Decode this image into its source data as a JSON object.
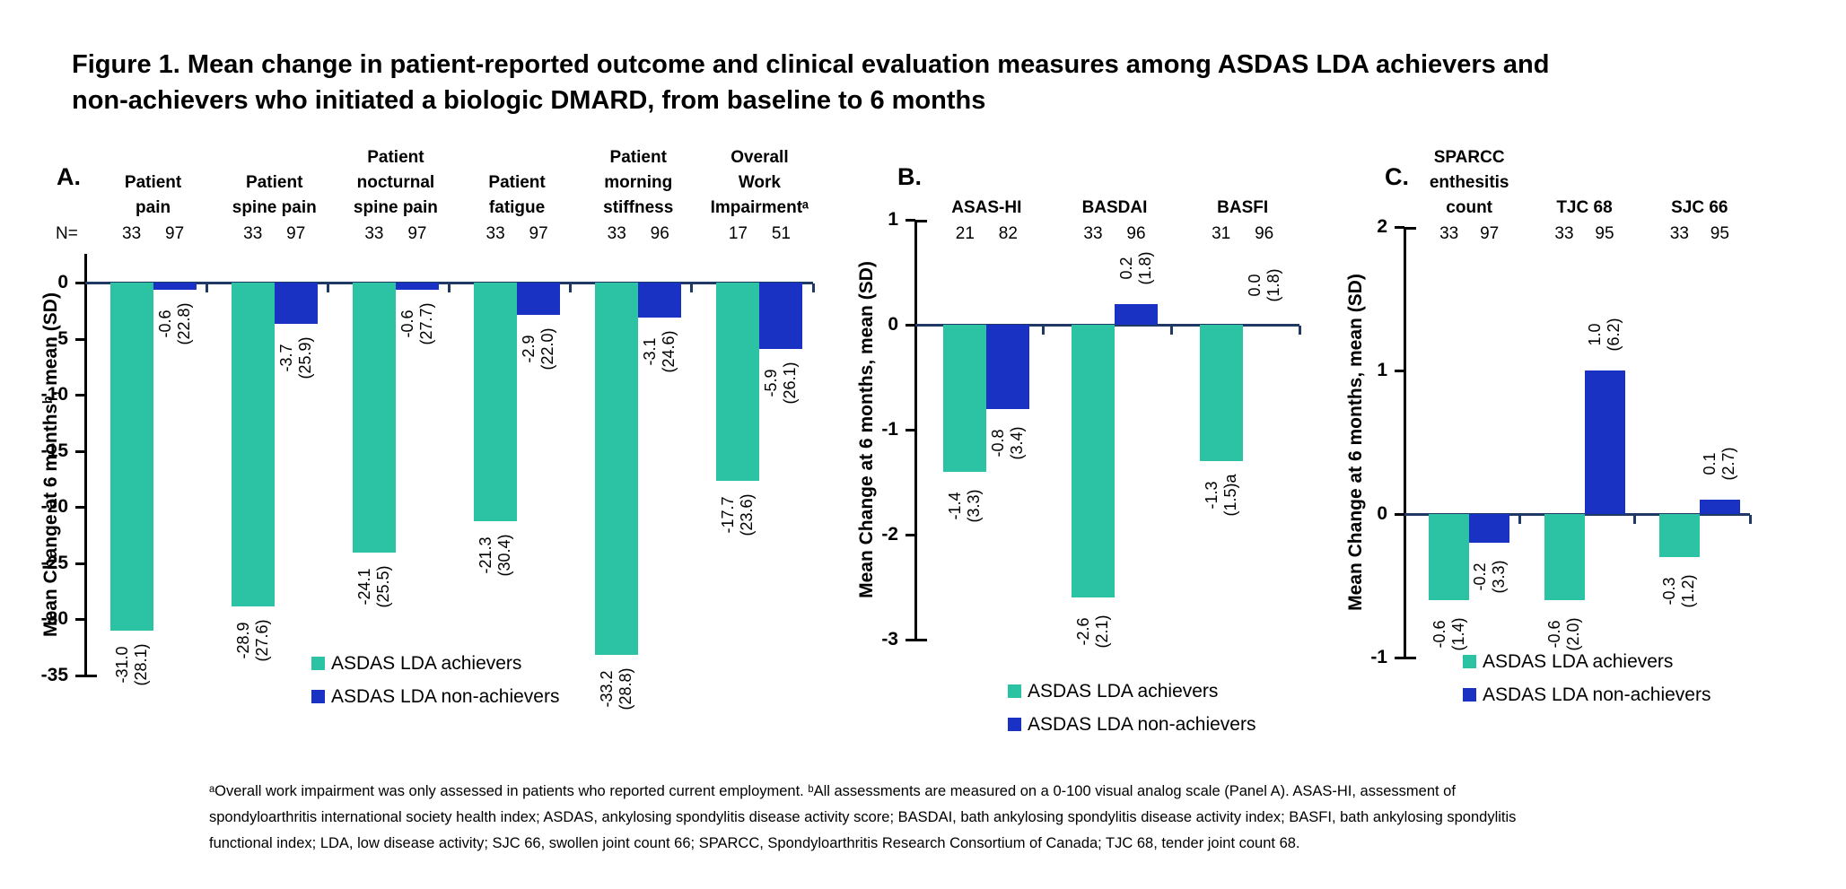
{
  "title": "Figure 1. Mean change in patient-reported outcome and clinical evaluation measures among ASDAS LDA achievers and\nnon-achievers who initiated a biologic DMARD, from baseline to 6 months",
  "n_equals_label": "N=",
  "legend": {
    "achievers_label": "ASDAS LDA achievers",
    "non_achievers_label": "ASDAS LDA non-achievers"
  },
  "colors": {
    "achievers": "#2CC2A4",
    "non_achievers": "#1A32C4",
    "baseline": "#1F3864",
    "axis": "#000000"
  },
  "footnote": "ᵃOverall work impairment was only assessed in patients who reported current employment. ᵇAll assessments are measured on a 0-100 visual analog scale (Panel A). ASAS-HI, assessment of\nspondyloarthritis international society health index; ASDAS, ankylosing spondylitis disease activity score; BASDAI, bath ankylosing spondylitis disease activity index; BASFI, bath ankylosing spondylitis\nfunctional index; LDA, low disease activity; SJC 66, swollen joint count 66; SPARCC, Spondyloarthritis Research Consortium of Canada; TJC 68, tender joint count 68.",
  "chart_data": [
    {
      "id": "A",
      "type": "bar",
      "panel_label": "A.",
      "ylabel": "Mean Change at 6 monthsᵇ, mean (SD)",
      "ylim": [
        -35,
        0
      ],
      "yticks": [
        0,
        -5,
        -10,
        -15,
        -20,
        -25,
        -30,
        -35
      ],
      "grid": false,
      "legend_position": "inside-bottom",
      "series_names": [
        "ASDAS LDA achievers",
        "ASDAS LDA non-achievers"
      ],
      "categories": [
        {
          "label": "Patient\npain",
          "n": [
            33,
            97
          ],
          "achiever": {
            "value": -31.0,
            "sd": 28.1,
            "label": "-31.0\n(28.1)"
          },
          "non_achiever": {
            "value": -0.6,
            "sd": 22.8,
            "label": "-0.6\n(22.8)"
          }
        },
        {
          "label": "Patient\nspine pain",
          "n": [
            33,
            97
          ],
          "achiever": {
            "value": -28.9,
            "sd": 27.6,
            "label": "-28.9\n(27.6)"
          },
          "non_achiever": {
            "value": -3.7,
            "sd": 25.9,
            "label": "-3.7\n(25.9)"
          }
        },
        {
          "label": "Patient\nnocturnal\nspine pain",
          "n": [
            33,
            97
          ],
          "achiever": {
            "value": -24.1,
            "sd": 25.5,
            "label": "-24.1\n(25.5)"
          },
          "non_achiever": {
            "value": -0.6,
            "sd": 27.7,
            "label": "-0.6\n(27.7)"
          }
        },
        {
          "label": "Patient\nfatigue",
          "n": [
            33,
            97
          ],
          "achiever": {
            "value": -21.3,
            "sd": 30.4,
            "label": "-21.3\n(30.4)"
          },
          "non_achiever": {
            "value": -2.9,
            "sd": 22.0,
            "label": "-2.9\n(22.0)"
          }
        },
        {
          "label": "Patient\nmorning\nstiffness",
          "n": [
            33,
            96
          ],
          "achiever": {
            "value": -33.2,
            "sd": 28.8,
            "label": "-33.2\n(28.8)"
          },
          "non_achiever": {
            "value": -3.1,
            "sd": 24.6,
            "label": "-3.1\n(24.6)"
          }
        },
        {
          "label": "Overall\nWork\nImpairmentᵃ",
          "n": [
            17,
            51
          ],
          "achiever": {
            "value": -17.7,
            "sd": 23.6,
            "label": "-17.7\n(23.6)"
          },
          "non_achiever": {
            "value": -5.9,
            "sd": 26.1,
            "label": "-5.9\n(26.1)"
          }
        }
      ]
    },
    {
      "id": "B",
      "type": "bar",
      "panel_label": "B.",
      "ylabel": "Mean Change at 6 months, mean (SD)",
      "ylim": [
        -3,
        1
      ],
      "yticks": [
        1,
        0,
        -1,
        -2,
        -3
      ],
      "grid": false,
      "legend_position": "below",
      "series_names": [
        "ASDAS LDA achievers",
        "ASDAS LDA non-achievers"
      ],
      "categories": [
        {
          "label": "ASAS-HI",
          "n": [
            21,
            82
          ],
          "achiever": {
            "value": -1.4,
            "sd": 3.3,
            "label": "-1.4\n(3.3)"
          },
          "non_achiever": {
            "value": -0.8,
            "sd": 3.4,
            "label": "-0.8\n(3.4)"
          }
        },
        {
          "label": "BASDAI",
          "n": [
            33,
            96
          ],
          "achiever": {
            "value": -2.6,
            "sd": 2.1,
            "label": "-2.6\n(2.1)"
          },
          "non_achiever": {
            "value": 0.2,
            "sd": 1.8,
            "label": "0.2\n(1.8)"
          }
        },
        {
          "label": "BASFI",
          "n": [
            31,
            96
          ],
          "achiever": {
            "value": -1.3,
            "sd": 1.5,
            "label": "-1.3\n(1.5)a"
          },
          "non_achiever": {
            "value": 0.0,
            "sd": 1.8,
            "label": "0.0\n(1.8)"
          }
        }
      ]
    },
    {
      "id": "C",
      "type": "bar",
      "panel_label": "C.",
      "ylabel": "Mean Change at 6 months, mean (SD)",
      "ylim": [
        -1,
        2
      ],
      "yticks": [
        2,
        1,
        0,
        -1
      ],
      "grid": false,
      "legend_position": "below",
      "series_names": [
        "ASDAS LDA achievers",
        "ASDAS LDA non-achievers"
      ],
      "categories": [
        {
          "label": "SPARCC\nenthesitis\ncount",
          "n": [
            33,
            97
          ],
          "achiever": {
            "value": -0.6,
            "sd": 1.4,
            "label": "-0.6\n(1.4)"
          },
          "non_achiever": {
            "value": -0.2,
            "sd": 3.3,
            "label": "-0.2\n(3.3)"
          }
        },
        {
          "label": "TJC 68",
          "n": [
            33,
            95
          ],
          "achiever": {
            "value": -0.6,
            "sd": 2.0,
            "label": "-0.6\n(2.0)"
          },
          "non_achiever": {
            "value": 1.0,
            "sd": 6.2,
            "label": "1.0\n(6.2)"
          }
        },
        {
          "label": "SJC 66",
          "n": [
            33,
            95
          ],
          "achiever": {
            "value": -0.3,
            "sd": 1.2,
            "label": "-0.3\n(1.2)"
          },
          "non_achiever": {
            "value": 0.1,
            "sd": 2.7,
            "label": "0.1\n(2.7)"
          }
        }
      ]
    }
  ]
}
